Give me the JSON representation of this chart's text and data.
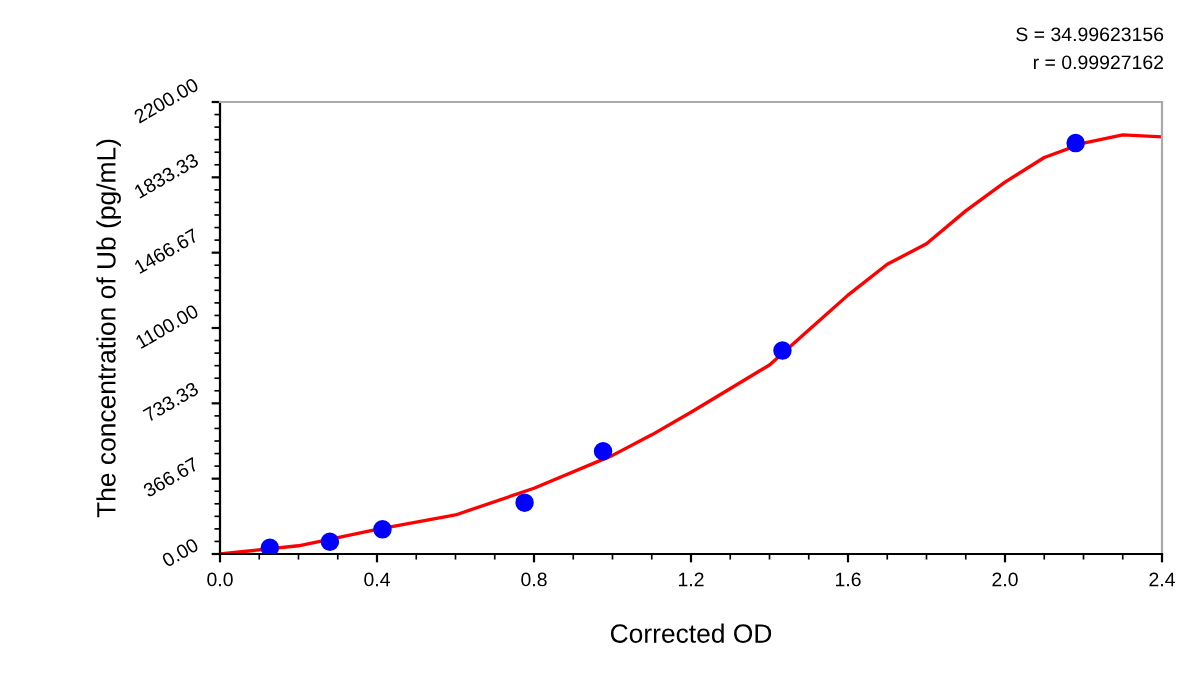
{
  "chart_data": {
    "type": "scatter",
    "xlabel": "Corrected OD",
    "ylabel": "The concentration of Ub (pg/mL)",
    "annotations": [
      "S = 34.99623156",
      "r = 0.99927162"
    ],
    "xlim": [
      0,
      2.4
    ],
    "ylim": [
      0,
      2200
    ],
    "xticks": [
      {
        "value": 0,
        "label": "0.0"
      },
      {
        "value": 0.4,
        "label": "0.4"
      },
      {
        "value": 0.8,
        "label": "0.8"
      },
      {
        "value": 1.2,
        "label": "1.2"
      },
      {
        "value": 1.6,
        "label": "1.6"
      },
      {
        "value": 2.0,
        "label": "2.0"
      },
      {
        "value": 2.4,
        "label": "2.4"
      }
    ],
    "yticks": [
      {
        "value": 0,
        "label": "0.00"
      },
      {
        "value": 366.67,
        "label": "366.67"
      },
      {
        "value": 733.33,
        "label": "733.33"
      },
      {
        "value": 1100,
        "label": "1100.00"
      },
      {
        "value": 1466.67,
        "label": "1466.67"
      },
      {
        "value": 1833.33,
        "label": "1833.33"
      },
      {
        "value": 2200,
        "label": "2200.00"
      }
    ],
    "grid": false,
    "legend": false,
    "series": [
      {
        "type": "line",
        "color": "#ff0000",
        "marker": "none",
        "line_style": "solid",
        "x": [
          0,
          0.2,
          0.4,
          0.6,
          0.8,
          1.0,
          1.1,
          1.2,
          1.4,
          1.5,
          1.6,
          1.7,
          1.8,
          1.9,
          2.0,
          2.1,
          2.2,
          2.3,
          2.4
        ],
        "values": [
          0,
          40,
          120,
          190,
          320,
          480,
          580,
          690,
          920,
          1090,
          1260,
          1410,
          1510,
          1670,
          1810,
          1930,
          2000,
          2040,
          2030
        ]
      },
      {
        "color": "#0000ff",
        "marker": "circle",
        "x": [
          0.127,
          0.28,
          0.414,
          0.776,
          0.976,
          1.433,
          2.18
        ],
        "values": [
          30,
          60,
          120,
          250,
          500,
          990,
          2000
        ]
      }
    ]
  }
}
